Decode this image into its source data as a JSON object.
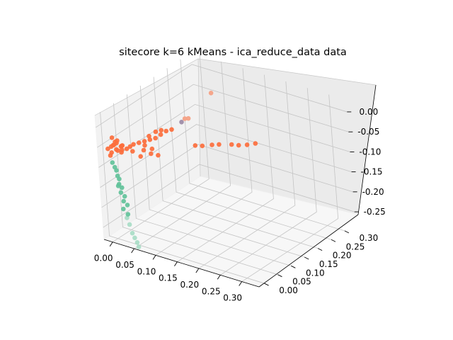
{
  "chart_data": {
    "type": "scatter",
    "projection": "3d",
    "title": "sitecore k=6 kMeans - ica_reduce_data data",
    "x_ticks": [
      "0.00",
      "0.05",
      "0.10",
      "0.15",
      "0.20",
      "0.25",
      "0.30"
    ],
    "y_ticks": [
      "0.00",
      "0.05",
      "0.10",
      "0.15",
      "0.20",
      "0.25",
      "0.30"
    ],
    "z_ticks": [
      "0.00",
      "-0.05",
      "-0.10",
      "-0.15",
      "-0.20",
      "-0.25"
    ],
    "xlim": [
      -0.02,
      0.34
    ],
    "ylim": [
      -0.02,
      0.34
    ],
    "zlim": [
      -0.28,
      0.03
    ],
    "grid": true,
    "colors": {
      "orange": "#fc6e3c",
      "orange_light": "#f5a082",
      "teal": "#62c29a",
      "teal_light": "#a8dcc6",
      "purple": "#9c8aa6"
    },
    "series": [
      {
        "color": "#fc6e3c",
        "points": [
          [
            0.0,
            0.0,
            -0.05
          ],
          [
            0.005,
            0.0,
            -0.045
          ],
          [
            0.01,
            0.005,
            -0.04
          ],
          [
            0.0,
            0.01,
            -0.05
          ],
          [
            0.015,
            0.0,
            -0.055
          ],
          [
            0.005,
            0.01,
            -0.06
          ],
          [
            0.01,
            0.0,
            -0.035
          ],
          [
            0.02,
            0.01,
            -0.045
          ],
          [
            0.0,
            0.005,
            -0.03
          ],
          [
            0.015,
            0.015,
            -0.05
          ],
          [
            0.025,
            0.0,
            -0.05
          ],
          [
            0.01,
            0.02,
            -0.055
          ],
          [
            0.0,
            0.0,
            -0.065
          ],
          [
            0.02,
            0.005,
            -0.06
          ],
          [
            0.005,
            0.015,
            -0.04
          ],
          [
            0.03,
            0.01,
            -0.05
          ],
          [
            0.035,
            0.015,
            -0.045
          ],
          [
            0.04,
            0.02,
            -0.04
          ],
          [
            0.05,
            0.025,
            -0.035
          ],
          [
            0.06,
            0.03,
            -0.03
          ],
          [
            0.07,
            0.035,
            -0.025
          ],
          [
            0.08,
            0.04,
            -0.02
          ],
          [
            0.09,
            0.045,
            -0.01
          ],
          [
            0.1,
            0.05,
            0.0
          ],
          [
            0.11,
            0.055,
            0.005
          ],
          [
            0.065,
            0.04,
            -0.02
          ],
          [
            0.075,
            0.05,
            -0.01
          ],
          [
            0.085,
            0.055,
            -0.005
          ],
          [
            0.05,
            0.04,
            -0.06
          ],
          [
            0.06,
            0.05,
            -0.07
          ],
          [
            0.07,
            0.06,
            -0.075
          ],
          [
            0.04,
            0.06,
            -0.06
          ],
          [
            0.05,
            0.07,
            -0.07
          ],
          [
            0.1,
            0.15,
            -0.08
          ],
          [
            0.11,
            0.16,
            -0.082
          ],
          [
            0.12,
            0.18,
            -0.085
          ],
          [
            0.13,
            0.19,
            -0.085
          ],
          [
            0.14,
            0.22,
            -0.095
          ],
          [
            0.15,
            0.23,
            -0.098
          ],
          [
            0.16,
            0.245,
            -0.1
          ],
          [
            0.17,
            0.26,
            -0.1
          ],
          [
            0.03,
            0.03,
            -0.065
          ],
          [
            0.045,
            0.035,
            -0.075
          ],
          [
            -0.005,
            -0.005,
            -0.055
          ],
          [
            0.0,
            -0.005,
            -0.07
          ]
        ]
      },
      {
        "color": "#f5a082",
        "points": [
          [
            0.14,
            0.16,
            0.06
          ],
          [
            0.12,
            0.09,
            0.02
          ],
          [
            0.125,
            0.095,
            0.02
          ]
        ]
      },
      {
        "color": "#9c8aa6",
        "points": [
          [
            0.115,
            0.085,
            0.012
          ]
        ]
      },
      {
        "color": "#62c29a",
        "points": [
          [
            0.0,
            0.0,
            -0.09
          ],
          [
            0.005,
            0.0,
            -0.1
          ],
          [
            0.005,
            0.005,
            -0.11
          ],
          [
            0.01,
            0.0,
            -0.12
          ],
          [
            0.01,
            0.005,
            -0.13
          ],
          [
            0.012,
            0.0,
            -0.14
          ],
          [
            0.015,
            0.005,
            -0.15
          ],
          [
            0.015,
            0.0,
            -0.16
          ],
          [
            0.02,
            0.005,
            -0.17
          ],
          [
            0.02,
            0.0,
            -0.18
          ],
          [
            0.025,
            0.005,
            -0.19
          ],
          [
            0.028,
            0.0,
            -0.21
          ],
          [
            0.01,
            0.0,
            -0.145
          ],
          [
            0.018,
            0.0,
            -0.2
          ]
        ]
      },
      {
        "color": "#a8dcc6",
        "points": [
          [
            0.025,
            0.0,
            -0.22
          ],
          [
            0.03,
            0.0,
            -0.235
          ],
          [
            0.035,
            0.0,
            -0.255
          ],
          [
            0.04,
            0.0,
            -0.265
          ],
          [
            0.045,
            0.0,
            -0.275
          ],
          [
            0.048,
            0.0,
            -0.285
          ]
        ]
      }
    ]
  }
}
